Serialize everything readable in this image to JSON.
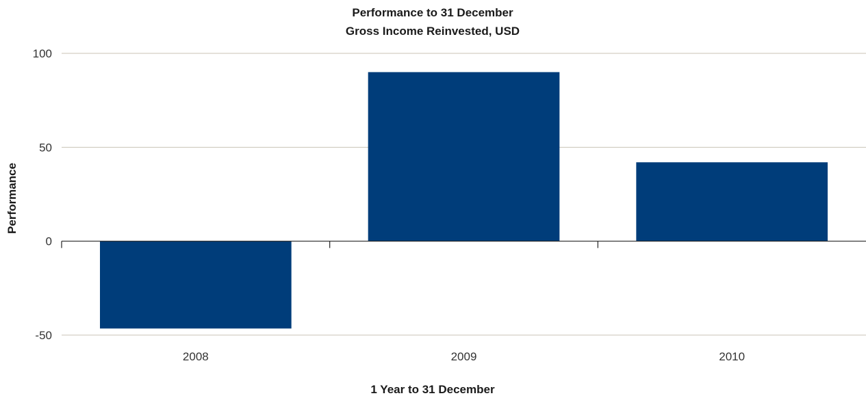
{
  "chart_data": {
    "type": "bar",
    "title": "Performance to 31 December",
    "subtitle": "Gross Income Reinvested, USD",
    "xlabel": "1 Year to 31 December",
    "ylabel": "Performance",
    "categories": [
      "2008",
      "2009",
      "2010"
    ],
    "series": [
      {
        "values": [
          -46.5,
          90,
          42
        ]
      }
    ],
    "ylim": [
      -50,
      100
    ],
    "yticks": [
      100,
      50,
      0,
      -50
    ],
    "ytick_labels": [
      "100",
      "50",
      "0",
      "-50"
    ],
    "grid": true,
    "legend": "none",
    "colors": {
      "bar": "#003d7a",
      "grid": "#c8c3b4",
      "axis": "#222222"
    }
  }
}
